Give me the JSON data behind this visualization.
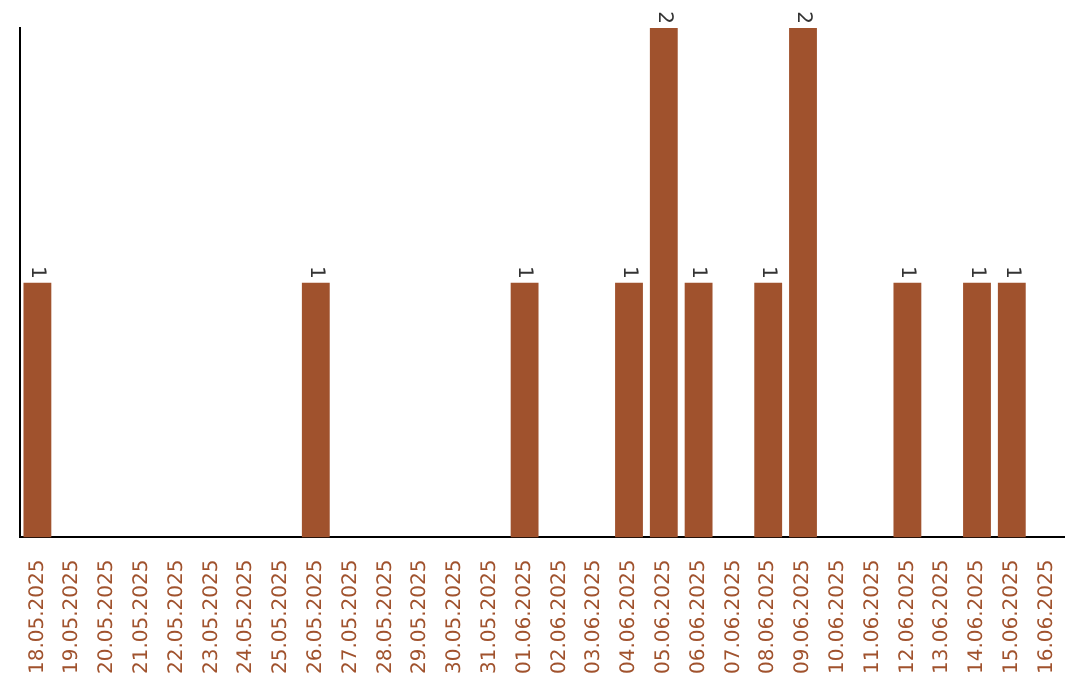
{
  "chart_data": {
    "type": "bar",
    "categories": [
      "18.05.2025",
      "19.05.2025",
      "20.05.2025",
      "21.05.2025",
      "22.05.2025",
      "23.05.2025",
      "24.05.2025",
      "25.05.2025",
      "26.05.2025",
      "27.05.2025",
      "28.05.2025",
      "29.05.2025",
      "30.05.2025",
      "31.05.2025",
      "01.06.2025",
      "02.06.2025",
      "03.06.2025",
      "04.06.2025",
      "05.06.2025",
      "06.06.2025",
      "07.06.2025",
      "08.06.2025",
      "09.06.2025",
      "10.06.2025",
      "11.06.2025",
      "12.06.2025",
      "13.06.2025",
      "14.06.2025",
      "15.06.2025",
      "16.06.2025"
    ],
    "values": [
      1,
      0,
      0,
      0,
      0,
      0,
      0,
      0,
      1,
      0,
      0,
      0,
      0,
      0,
      1,
      0,
      0,
      1,
      2,
      1,
      0,
      1,
      2,
      0,
      0,
      1,
      0,
      1,
      1,
      0
    ],
    "value_labels": [
      "1",
      null,
      null,
      null,
      null,
      null,
      null,
      null,
      "1",
      null,
      null,
      null,
      null,
      null,
      "1",
      null,
      null,
      "1",
      "2",
      "1",
      null,
      "1",
      "2",
      null,
      null,
      "1",
      null,
      "1",
      "1",
      null
    ],
    "color": "#a0522d"
  }
}
